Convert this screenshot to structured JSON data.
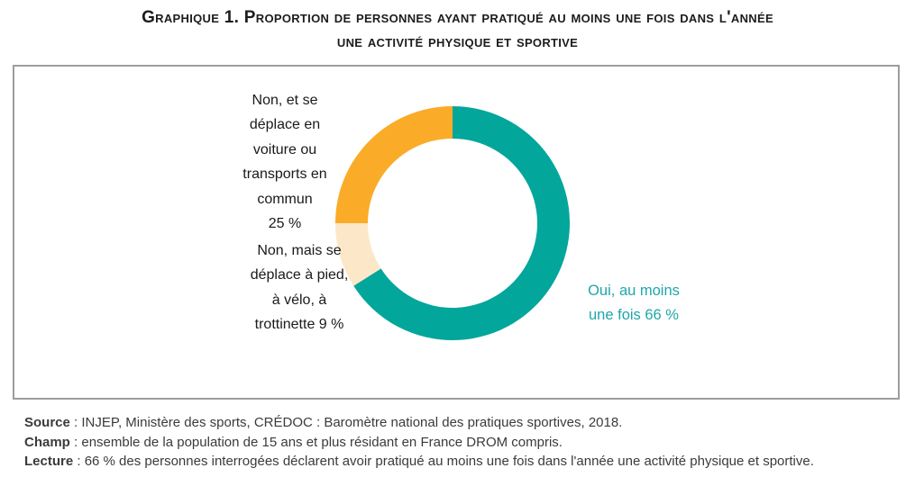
{
  "title": "Graphique 1. Proportion de personnes ayant pratiqué au moins une fois dans l'année\nune activité physique et sportive",
  "chart_data": {
    "type": "pie",
    "donut": true,
    "title": "Graphique 1. Proportion de personnes ayant pratiqué au moins une fois dans l'année une activité physique et sportive",
    "start_angle_deg": 0,
    "direction": "clockwise",
    "inner_radius_ratio": 0.72,
    "legend_position": "labels-outside",
    "slices": [
      {
        "id": "oui-au-moins-une-fois",
        "label": "Oui, au moins une fois",
        "value": 66,
        "unit": "%",
        "color": "#03a69b"
      },
      {
        "id": "non-deplace-a-pied-velo-trottinette",
        "label": "Non, mais se déplace à pied, à vélo, à trottinette",
        "value": 9,
        "unit": "%",
        "color": "#fce8c8"
      },
      {
        "id": "non-deplace-voiture-transports-commun",
        "label": "Non, et se déplace en voiture ou transports en commun",
        "value": 25,
        "unit": "%",
        "color": "#faac28"
      }
    ]
  },
  "labels": {
    "car_transit": "Non, et se\ndéplace en\nvoiture ou\ntransports en\ncommun\n25 %",
    "walk_bike": "Non, mais se\ndéplace à pied,\nà vélo, à\ntrottinette 9 %",
    "yes": "Oui, au moins\nune fois 66 %"
  },
  "notes": [
    {
      "label": "Source",
      "text": " : INJEP, Ministère des sports, CRÉDOC : Baromètre national des pratiques sportives, 2018."
    },
    {
      "label": "Champ",
      "text": " : ensemble de la population de 15 ans et plus résidant en France DROM compris."
    },
    {
      "label": "Lecture",
      "text": " : 66 % des personnes interrogées déclarent avoir pratiqué au moins une fois dans l'année une activité physique et sportive."
    }
  ],
  "colors": {
    "teal": "#03a69b",
    "teal_text": "#1fa7a9",
    "orange": "#faac28",
    "cream": "#fce8c8",
    "frame_border": "#9d9d9d",
    "text": "#3b3b3b"
  }
}
